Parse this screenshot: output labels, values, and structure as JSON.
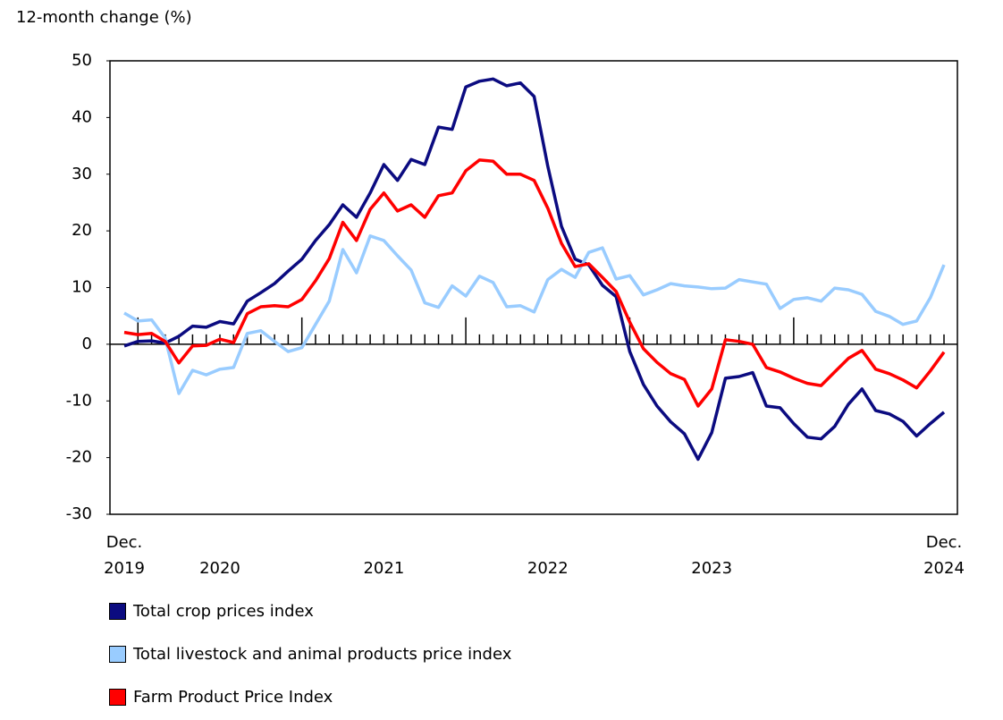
{
  "chart_data": {
    "type": "line",
    "y_label": "12-month change (%)",
    "categories": [
      "Dec. 2019",
      null,
      null,
      null,
      null,
      null,
      null,
      "2020",
      null,
      null,
      null,
      null,
      null,
      null,
      null,
      null,
      null,
      null,
      null,
      "2021",
      null,
      null,
      null,
      null,
      null,
      null,
      null,
      null,
      null,
      null,
      null,
      "2022",
      null,
      null,
      null,
      null,
      null,
      null,
      null,
      null,
      null,
      null,
      null,
      "2023",
      null,
      null,
      null,
      null,
      null,
      null,
      null,
      null,
      null,
      null,
      null,
      null,
      null,
      null,
      null,
      null,
      "Dec. 2024"
    ],
    "series": [
      {
        "name": "Total crop prices index",
        "color": "#0b0b80",
        "values": [
          -0.3,
          0.5,
          0.6,
          0.2,
          1.4,
          3.2,
          3.0,
          4.0,
          3.6,
          7.6,
          9.1,
          10.7,
          12.9,
          15.0,
          18.3,
          21.1,
          24.6,
          22.4,
          26.7,
          31.7,
          28.9,
          32.6,
          31.7,
          38.3,
          37.9,
          45.4,
          46.4,
          46.8,
          45.6,
          46.1,
          43.7,
          31.4,
          20.8,
          15.0,
          14.0,
          10.4,
          8.4,
          -1.3,
          -7.1,
          -10.9,
          -13.7,
          -15.8,
          -20.3,
          -15.6,
          -6.0,
          -5.7,
          -5.0,
          -10.9,
          -11.2,
          -14.0,
          -16.4,
          -16.7,
          -14.5,
          -10.6,
          -7.9,
          -11.7,
          -12.3,
          -13.6,
          -16.2,
          -14.0,
          -12.0
        ]
      },
      {
        "name": "Total livestock and animal products price index",
        "color": "#99ccff",
        "values": [
          5.5,
          4.1,
          4.3,
          1.1,
          -8.7,
          -4.6,
          -5.4,
          -4.4,
          -4.1,
          1.9,
          2.4,
          0.5,
          -1.3,
          -0.6,
          3.5,
          7.6,
          16.7,
          12.6,
          19.1,
          18.3,
          15.6,
          13.1,
          7.3,
          6.5,
          10.3,
          8.5,
          12.0,
          10.9,
          6.6,
          6.8,
          5.7,
          11.4,
          13.2,
          11.8,
          16.2,
          17.0,
          11.5,
          12.1,
          8.7,
          9.6,
          10.7,
          10.3,
          10.1,
          9.8,
          9.9,
          11.4,
          11.0,
          10.6,
          6.3,
          7.9,
          8.2,
          7.6,
          9.9,
          9.6,
          8.8,
          5.8,
          4.9,
          3.5,
          4.1,
          8.2,
          14.0
        ]
      },
      {
        "name": "Farm Product Price Index",
        "color": "#ff0000",
        "values": [
          2.1,
          1.7,
          1.9,
          0.5,
          -3.3,
          -0.3,
          -0.2,
          0.9,
          0.3,
          5.4,
          6.6,
          6.8,
          6.6,
          7.9,
          11.2,
          15.1,
          21.5,
          18.3,
          23.8,
          26.7,
          23.5,
          24.6,
          22.4,
          26.2,
          26.7,
          30.6,
          32.5,
          32.3,
          30.0,
          30.0,
          28.9,
          24.0,
          17.8,
          13.7,
          14.2,
          11.8,
          9.3,
          3.9,
          -0.8,
          -3.2,
          -5.2,
          -6.2,
          -10.9,
          -7.9,
          0.8,
          0.5,
          0,
          -4.1,
          -4.9,
          -6.0,
          -6.9,
          -7.3,
          -4.9,
          -2.5,
          -1.1,
          -4.4,
          -5.2,
          -6.3,
          -7.7,
          -4.7,
          -1.4
        ]
      }
    ],
    "ylim": [
      -30,
      50
    ],
    "yticks": [
      -30,
      -20,
      -10,
      0,
      10,
      20,
      30,
      40,
      50
    ],
    "major_tick_every": 12,
    "legend": "bottom"
  }
}
